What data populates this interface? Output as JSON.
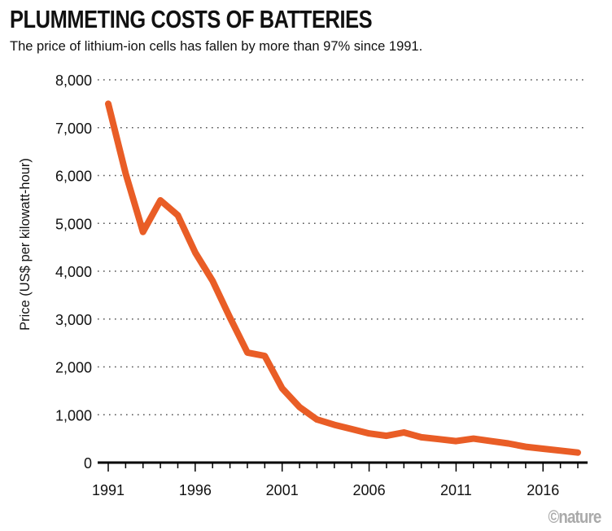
{
  "chart_data": {
    "type": "line",
    "title": "PLUMMETING COSTS OF BATTERIES",
    "subtitle": "The price of lithium-ion cells has fallen by more than 97% since 1991.",
    "xlabel": "",
    "ylabel": "Price (US$ per kilowatt-hour)",
    "xlim": [
      1991,
      2018
    ],
    "ylim": [
      0,
      8000
    ],
    "x_tick_labels": [
      "1991",
      "1996",
      "2001",
      "2006",
      "2011",
      "2016"
    ],
    "y_tick_labels": [
      "0",
      "1,000",
      "2,000",
      "3,000",
      "4,000",
      "5,000",
      "6,000",
      "7,000",
      "8,000"
    ],
    "grid": "horizontal dotted",
    "line_color": "#e95d26",
    "x": [
      1991,
      1992,
      1993,
      1994,
      1995,
      1996,
      1997,
      1998,
      1999,
      2000,
      2001,
      2002,
      2003,
      2004,
      2005,
      2006,
      2007,
      2008,
      2009,
      2010,
      2011,
      2012,
      2013,
      2014,
      2015,
      2016,
      2017,
      2018
    ],
    "values": [
      7500,
      6040,
      4820,
      5480,
      5170,
      4390,
      3800,
      3030,
      2300,
      2230,
      1550,
      1160,
      900,
      790,
      700,
      610,
      560,
      630,
      530,
      490,
      450,
      500,
      450,
      400,
      330,
      290,
      250,
      210
    ]
  },
  "credit": "©nature"
}
